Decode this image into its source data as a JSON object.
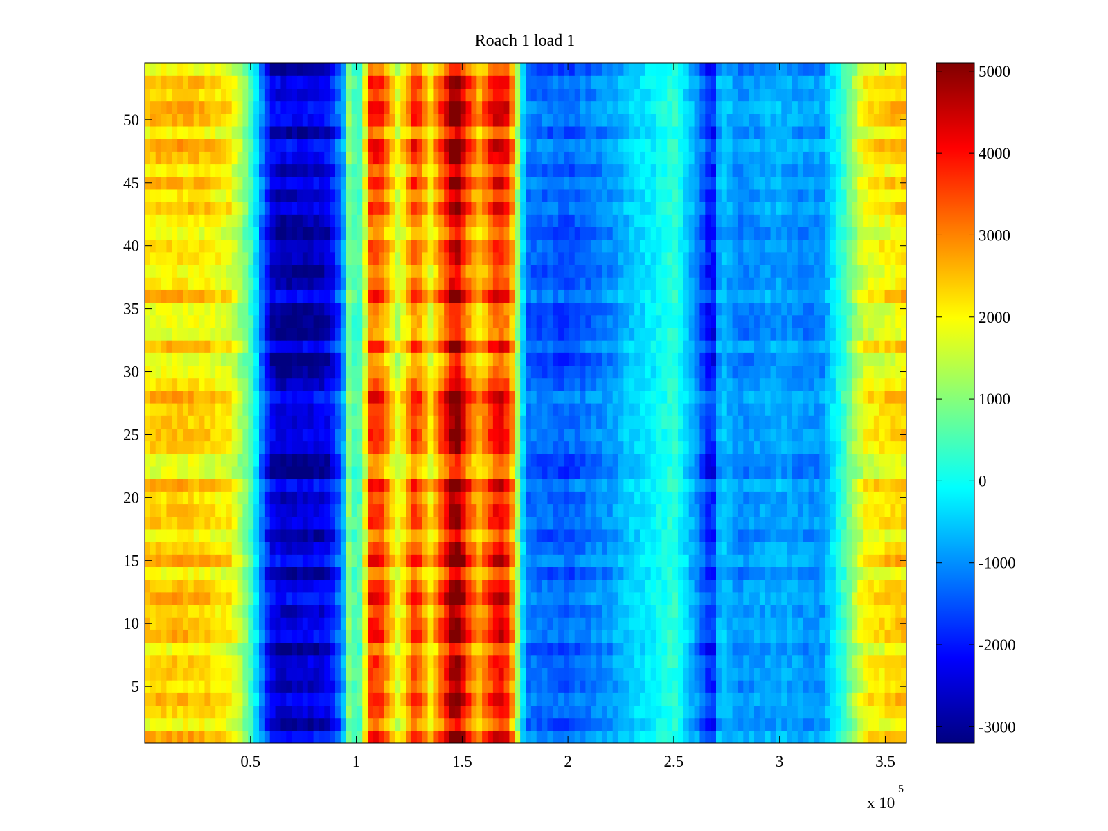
{
  "chart_data": {
    "type": "heatmap",
    "title": "Roach 1 load 1",
    "xlabel": "",
    "ylabel": "",
    "x_multiplier_label": "x 10",
    "x_multiplier_exponent": "5",
    "xlim": [
      0,
      360000
    ],
    "ylim": [
      0.5,
      54.5
    ],
    "x_ticks": [
      50000,
      100000,
      150000,
      200000,
      250000,
      300000,
      350000
    ],
    "x_tick_labels": [
      "0.5",
      "1",
      "1.5",
      "2",
      "2.5",
      "3",
      "3.5"
    ],
    "y_ticks": [
      5,
      10,
      15,
      20,
      25,
      30,
      35,
      40,
      45,
      50
    ],
    "y_tick_labels": [
      "5",
      "10",
      "15",
      "20",
      "25",
      "30",
      "35",
      "40",
      "45",
      "50"
    ],
    "rows": 54,
    "colorbar": {
      "colormap": "jet",
      "clim": [
        -3200,
        5100
      ],
      "ticks": [
        5000,
        4000,
        3000,
        2000,
        1000,
        0,
        -1000,
        -2000,
        -3000
      ],
      "tick_labels": [
        "5000",
        "4000",
        "3000",
        "2000",
        "1000",
        "0",
        "-1000",
        "-2000",
        "-3000"
      ]
    },
    "column_profile": {
      "x": [
        0,
        10000,
        20000,
        30000,
        40000,
        47000,
        52000,
        56000,
        60000,
        65000,
        75000,
        85000,
        90000,
        95000,
        97000,
        100000,
        103000,
        107000,
        112000,
        120000,
        128000,
        135000,
        142000,
        147000,
        152000,
        158000,
        165000,
        170000,
        174000,
        180000,
        200000,
        220000,
        230000,
        240000,
        250000,
        255000,
        262000,
        268000,
        272000,
        280000,
        300000,
        310000,
        320000,
        330000,
        340000,
        360000
      ],
      "values": [
        2100,
        2200,
        2200,
        2100,
        1900,
        1000,
        0,
        -1500,
        -2500,
        -2800,
        -2700,
        -2600,
        -2000,
        -500,
        1500,
        0,
        1000,
        3500,
        3200,
        1500,
        3400,
        2000,
        3500,
        4800,
        3400,
        2400,
        3600,
        3800,
        2500,
        -1300,
        -1500,
        -1000,
        -500,
        -200,
        300,
        -300,
        -1200,
        -2300,
        -500,
        -1100,
        -800,
        -1000,
        -1000,
        300,
        1800,
        2200
      ]
    }
  }
}
